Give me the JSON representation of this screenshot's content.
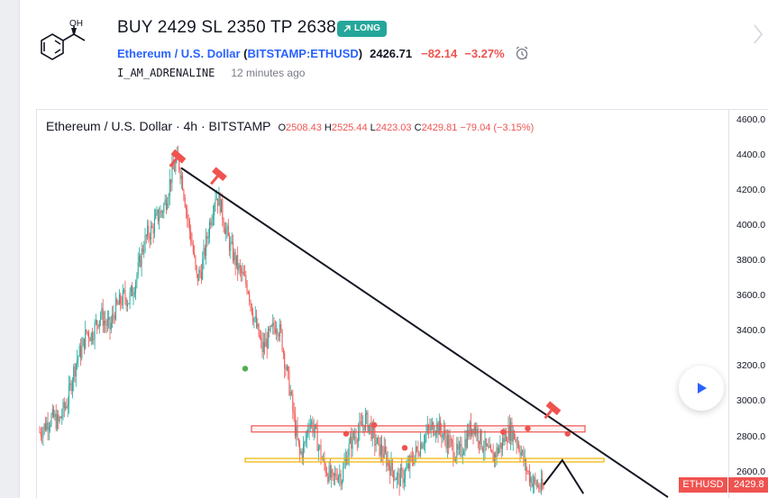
{
  "idea": {
    "title": "BUY 2429 SL 2350 TP 2638",
    "badge": "LONG",
    "author": "I_AM_ADRENALINE",
    "time_ago": "12 minutes ago",
    "logo_label": "OH"
  },
  "symbol": {
    "name": "Ethereum / U.S. Dollar",
    "exchange_symbol": "BITSTAMP:ETHUSD",
    "price": "2426.71",
    "change": "−82.14",
    "change_pct": "−3.27%"
  },
  "chart": {
    "legend_title": "Ethereum / U.S. Dollar · 4h · BITSTAMP",
    "o_label": "O",
    "o": "2508.43",
    "h_label": "H",
    "h": "2525.44",
    "l_label": "L",
    "l": "2423.03",
    "c_label": "C",
    "c": "2429.81",
    "chg": "−79.04 (−3.15%)",
    "ticker_tag": "ETHUSD",
    "price_tag": "2429.8",
    "scale_ticks": [
      "4600.0",
      "4400.0",
      "4200.0",
      "4000.0",
      "3800.0",
      "3600.0",
      "3400.0",
      "3200.0",
      "3000.0",
      "2800.0",
      "2600.0"
    ]
  },
  "chart_data": {
    "type": "candlestick",
    "ylim": [
      2450,
      4660
    ],
    "y_ticks": [
      4600,
      4400,
      4200,
      4000,
      3800,
      3600,
      3400,
      3200,
      3000,
      2800,
      2600
    ],
    "price_path": [
      [
        0,
        2830
      ],
      [
        4,
        2860
      ],
      [
        8,
        2900
      ],
      [
        12,
        2910
      ],
      [
        16,
        2880
      ],
      [
        20,
        2950
      ],
      [
        24,
        3010
      ],
      [
        28,
        3150
      ],
      [
        32,
        3250
      ],
      [
        36,
        3300
      ],
      [
        40,
        3400
      ],
      [
        44,
        3380
      ],
      [
        48,
        3440
      ],
      [
        52,
        3500
      ],
      [
        56,
        3450
      ],
      [
        60,
        3420
      ],
      [
        64,
        3520
      ],
      [
        68,
        3560
      ],
      [
        72,
        3600
      ],
      [
        76,
        3580
      ],
      [
        80,
        3650
      ],
      [
        84,
        3750
      ],
      [
        88,
        3880
      ],
      [
        92,
        3950
      ],
      [
        96,
        3980
      ],
      [
        100,
        4050
      ],
      [
        104,
        4080
      ],
      [
        108,
        4150
      ],
      [
        112,
        4280
      ],
      [
        116,
        4350
      ],
      [
        118,
        4380
      ],
      [
        122,
        4250
      ],
      [
        126,
        4050
      ],
      [
        130,
        3900
      ],
      [
        134,
        3700
      ],
      [
        138,
        3750
      ],
      [
        142,
        3900
      ],
      [
        146,
        4050
      ],
      [
        150,
        4180
      ],
      [
        154,
        4130
      ],
      [
        158,
        4000
      ],
      [
        162,
        3900
      ],
      [
        166,
        3820
      ],
      [
        170,
        3750
      ],
      [
        174,
        3700
      ],
      [
        178,
        3650
      ],
      [
        182,
        3500
      ],
      [
        186,
        3400
      ],
      [
        190,
        3300
      ],
      [
        194,
        3350
      ],
      [
        198,
        3400
      ],
      [
        202,
        3450
      ],
      [
        206,
        3380
      ],
      [
        210,
        3200
      ],
      [
        214,
        3050
      ],
      [
        218,
        2850
      ],
      [
        222,
        2700
      ],
      [
        226,
        2750
      ],
      [
        230,
        2900
      ],
      [
        234,
        2850
      ],
      [
        238,
        2750
      ],
      [
        242,
        2650
      ],
      [
        246,
        2600
      ],
      [
        250,
        2550
      ],
      [
        254,
        2600
      ],
      [
        258,
        2580
      ],
      [
        262,
        2700
      ],
      [
        266,
        2780
      ],
      [
        270,
        2820
      ],
      [
        274,
        2850
      ],
      [
        278,
        2900
      ],
      [
        282,
        2860
      ],
      [
        286,
        2780
      ],
      [
        290,
        2740
      ],
      [
        294,
        2700
      ],
      [
        298,
        2650
      ],
      [
        302,
        2600
      ],
      [
        306,
        2560
      ],
      [
        310,
        2580
      ],
      [
        314,
        2620
      ],
      [
        318,
        2680
      ],
      [
        322,
        2720
      ],
      [
        326,
        2780
      ],
      [
        330,
        2820
      ],
      [
        334,
        2850
      ],
      [
        338,
        2870
      ],
      [
        342,
        2840
      ],
      [
        346,
        2800
      ],
      [
        350,
        2760
      ],
      [
        354,
        2720
      ],
      [
        358,
        2700
      ],
      [
        362,
        2760
      ],
      [
        366,
        2830
      ],
      [
        370,
        2870
      ],
      [
        374,
        2820
      ],
      [
        378,
        2760
      ],
      [
        382,
        2720
      ],
      [
        386,
        2680
      ],
      [
        390,
        2720
      ],
      [
        394,
        2760
      ],
      [
        398,
        2820
      ],
      [
        402,
        2840
      ],
      [
        406,
        2800
      ],
      [
        410,
        2740
      ],
      [
        414,
        2640
      ],
      [
        418,
        2580
      ],
      [
        422,
        2540
      ],
      [
        426,
        2520
      ],
      [
        430,
        2500
      ]
    ],
    "trendline": [
      [
        0,
        4330
      ],
      [
        520,
        2460
      ]
    ],
    "resistance_zone": [
      2830,
      2865
    ],
    "support_zone": [
      2660,
      2680
    ],
    "projection": [
      [
        430,
        2530
      ],
      [
        446,
        2670
      ],
      [
        464,
        2480
      ]
    ],
    "green_dot": [
      120,
      3190
    ],
    "red_dots": [
      [
        200,
        2820
      ],
      [
        224,
        2870
      ],
      [
        250,
        2740
      ],
      [
        334,
        2830
      ],
      [
        355,
        2850
      ],
      [
        389,
        2820
      ]
    ],
    "hammers": [
      [
        60,
        4390
      ],
      [
        95,
        4290
      ],
      [
        380,
        2960
      ]
    ],
    "last_price": 2429.81
  },
  "colors": {
    "accent": "#2962ff",
    "down": "#ef5350",
    "up": "#26a69a",
    "long_badge": "#26a69a",
    "resistance": "#ef5350",
    "support": "#f0b400"
  },
  "icons": {
    "alarm": "alarm-clock-icon",
    "play": "play-icon",
    "next": "chevron-right-icon",
    "long": "arrow-up-right-icon"
  }
}
